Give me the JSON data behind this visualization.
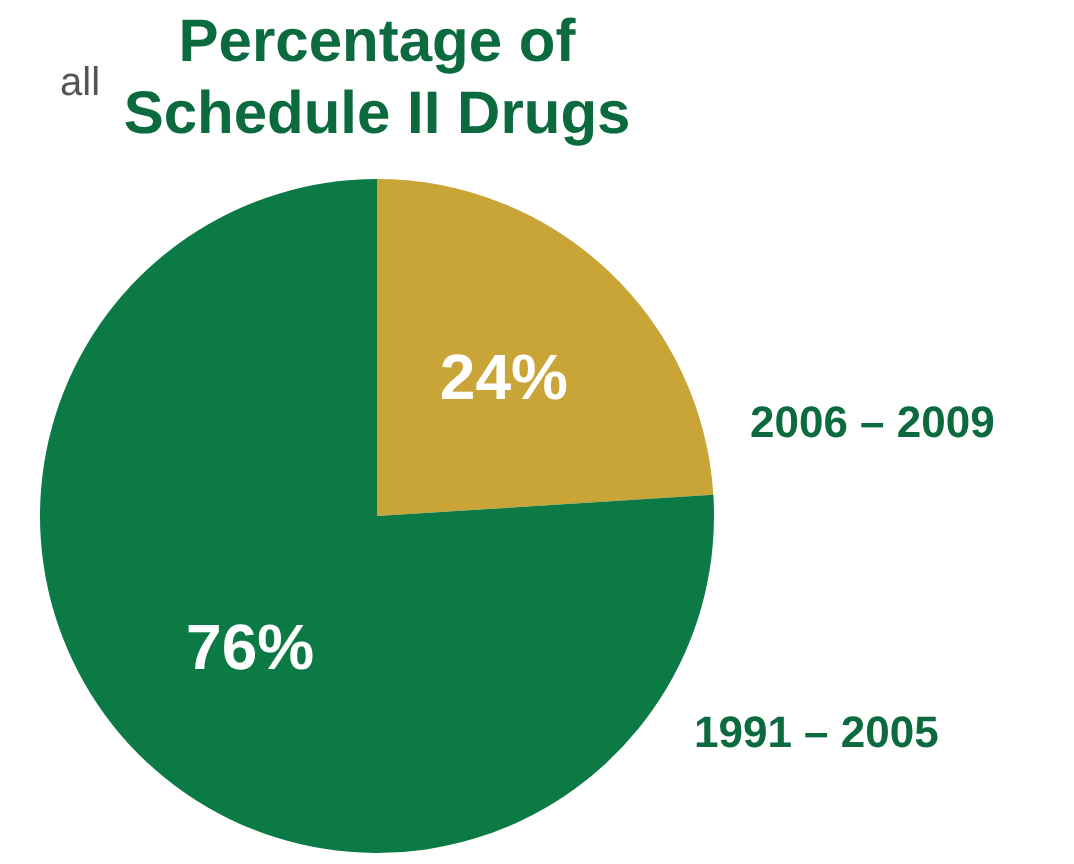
{
  "chart_data": {
    "type": "pie",
    "title": "Percentage of\nSchedule II Drugs",
    "categories": [
      "2006 – 2009",
      "1991 – 2005"
    ],
    "values": [
      24,
      76
    ],
    "colors": [
      "#c9a437",
      "#0b7a45"
    ],
    "value_labels": [
      "24%",
      "76%"
    ],
    "annotations": [
      "all"
    ],
    "legend": false
  }
}
